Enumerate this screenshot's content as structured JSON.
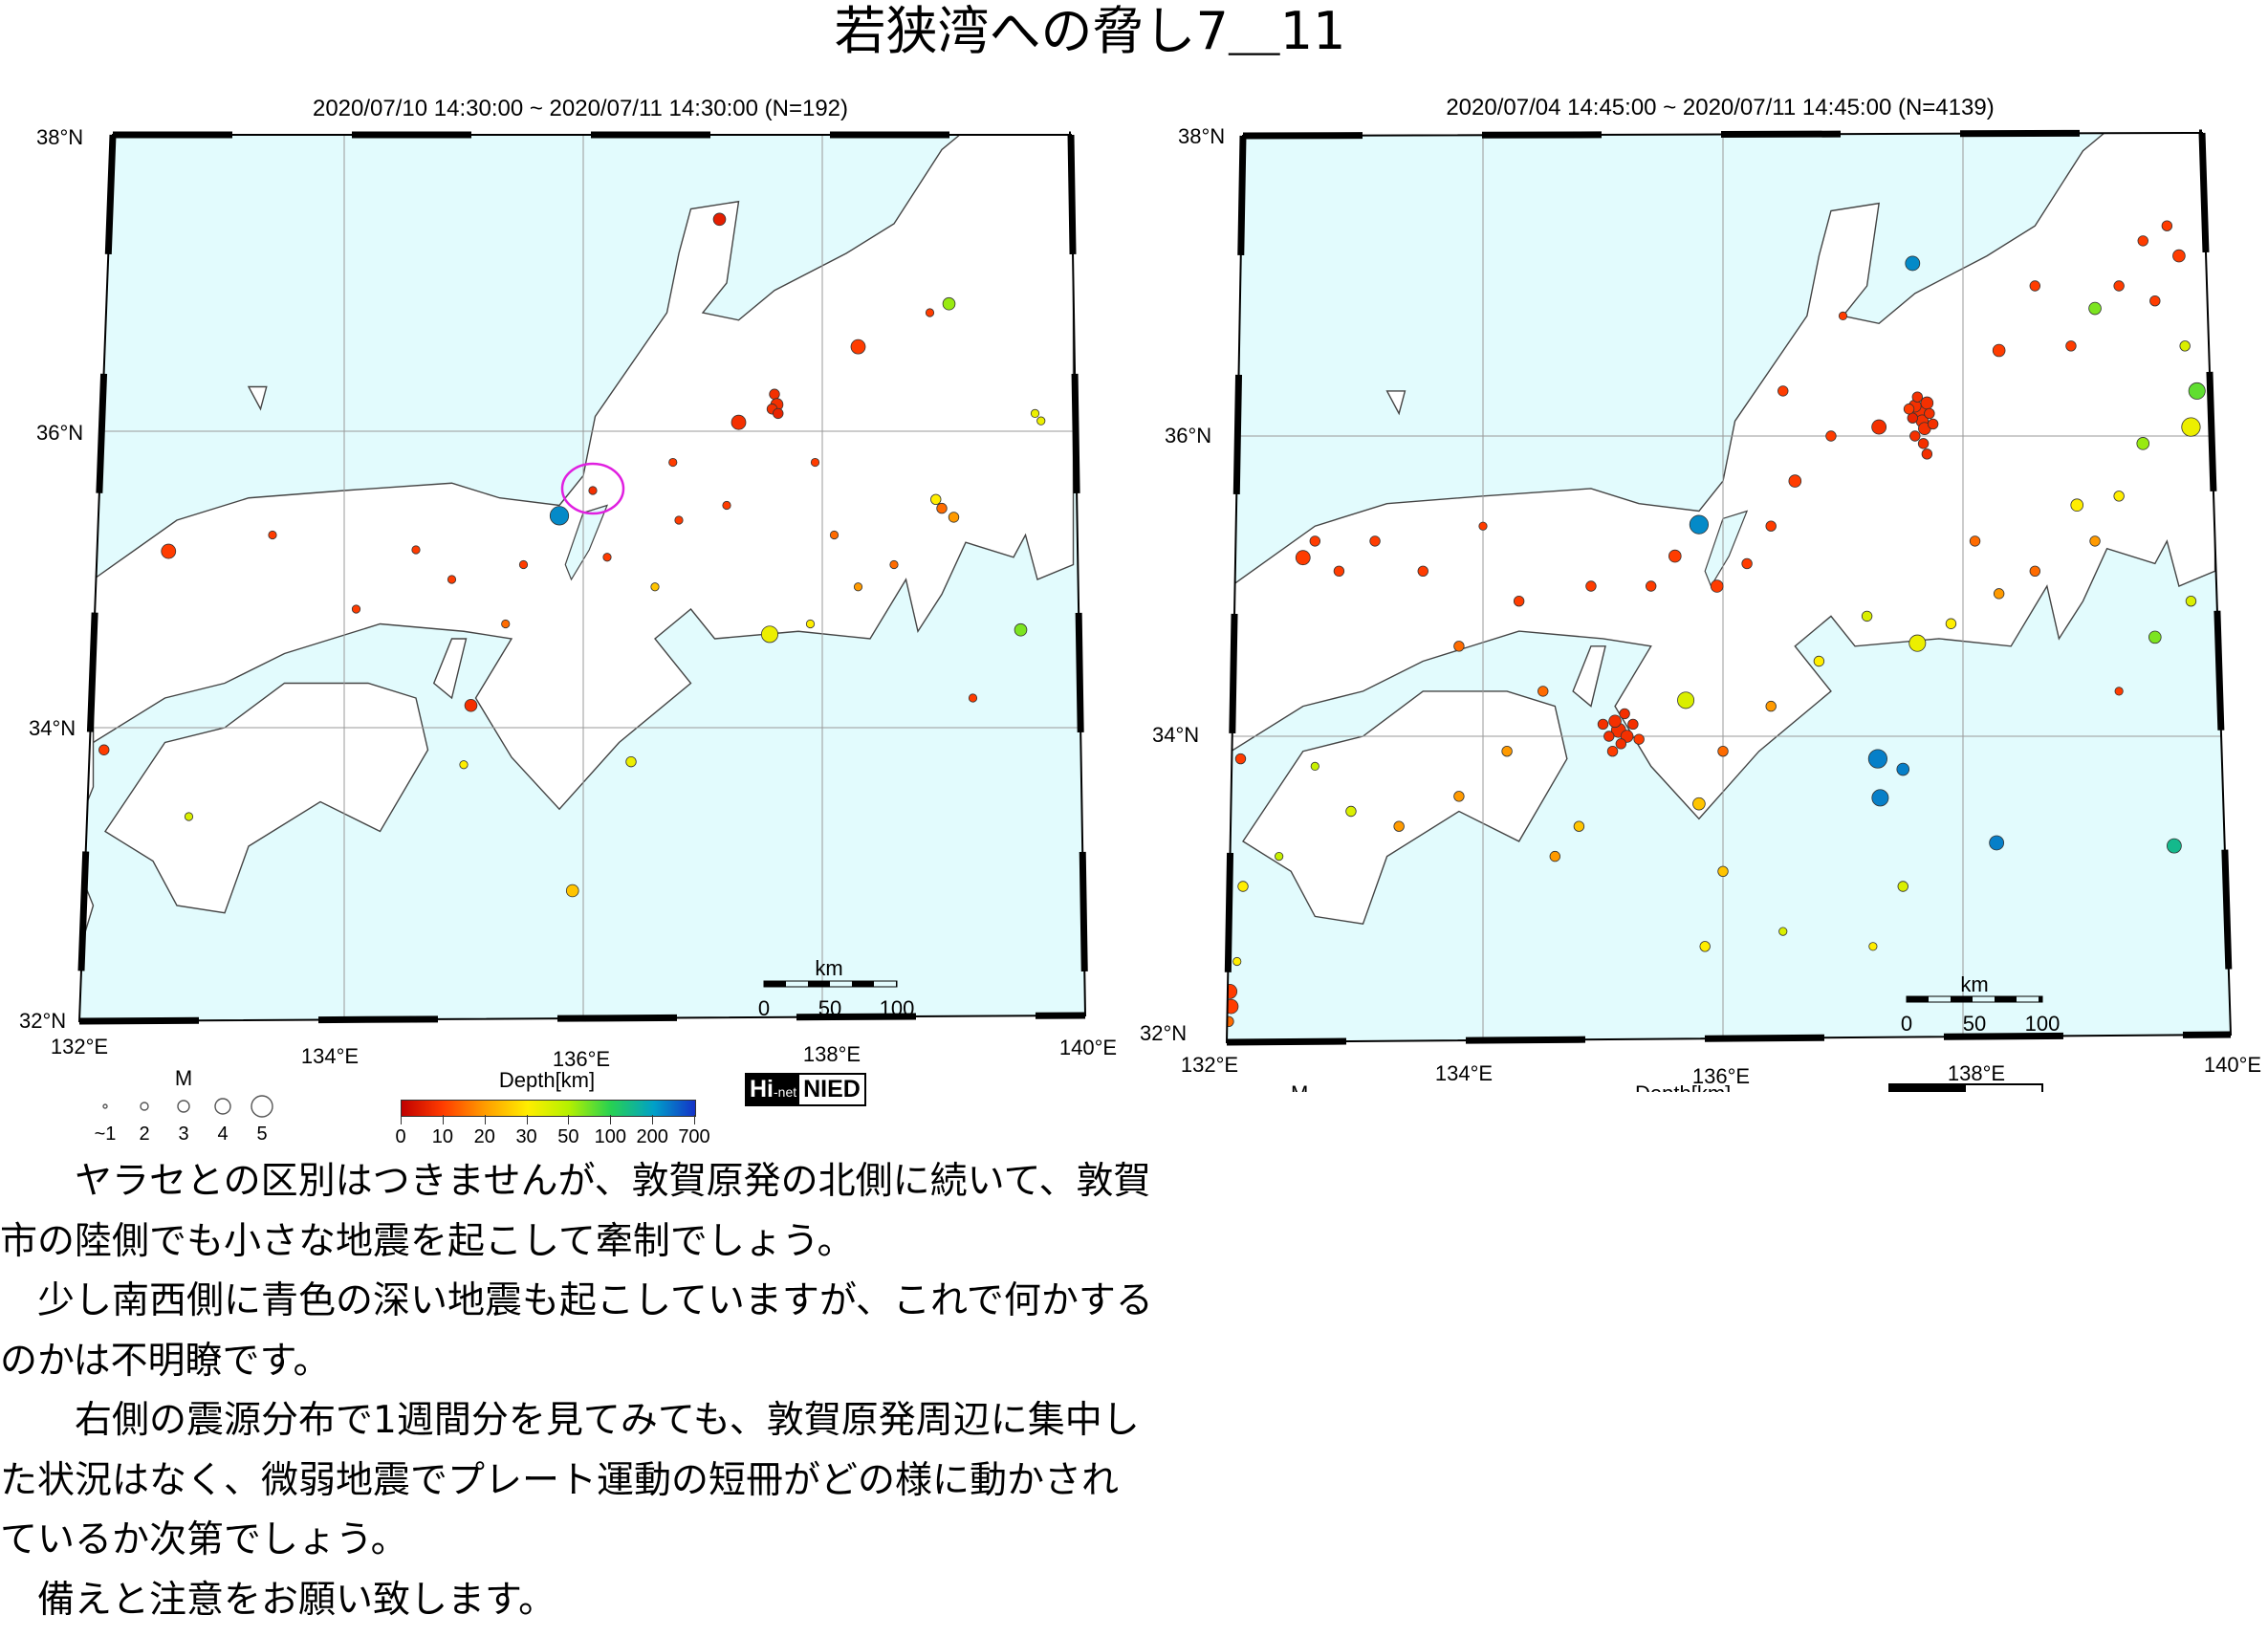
{
  "title": "若狭湾への脅し7＿11",
  "colors": {
    "sea": "#e2fbfd",
    "land": "#ffffff",
    "highlight_circle": "#e020e0"
  },
  "depth_color_stops": [
    [
      0,
      "#c80000"
    ],
    [
      10,
      "#ff3c00"
    ],
    [
      20,
      "#ff9a00"
    ],
    [
      30,
      "#ffee00"
    ],
    [
      50,
      "#b4f000"
    ],
    [
      100,
      "#28d250"
    ],
    [
      200,
      "#00a0c8"
    ],
    [
      700,
      "#1432c8"
    ]
  ],
  "maps": [
    {
      "header": "2020/07/10 14:30:00 ~ 2020/07/11 14:30:00 (N=192)",
      "lat_labels": [
        "38°N",
        "36°N",
        "34°N",
        "32°N"
      ],
      "lon_labels": [
        "132°E",
        "134°E",
        "136°E",
        "138°E",
        "140°E"
      ],
      "scale": {
        "unit": "km",
        "labels": [
          "0",
          "50",
          "100"
        ]
      },
      "highlight": {
        "lon": 136.08,
        "lat": 35.6,
        "note": "Tsuruga area"
      },
      "events": [
        [
          137.14,
          37.43,
          5,
          2
        ],
        [
          139.06,
          36.86,
          60,
          2
        ],
        [
          138.3,
          36.57,
          10,
          2.5
        ],
        [
          137.6,
          36.25,
          8,
          1.5
        ],
        [
          137.62,
          36.18,
          8,
          2
        ],
        [
          137.58,
          36.15,
          8,
          1.5
        ],
        [
          137.63,
          36.12,
          6,
          1.5
        ],
        [
          137.3,
          36.06,
          8,
          2.5
        ],
        [
          136.08,
          35.6,
          8,
          1
        ],
        [
          135.8,
          35.43,
          300,
          3.5
        ],
        [
          132.53,
          35.19,
          10,
          2.5
        ],
        [
          137.56,
          34.63,
          35,
          3
        ],
        [
          139.66,
          34.66,
          70,
          2
        ],
        [
          138.95,
          35.54,
          30,
          1.5
        ],
        [
          139.0,
          35.48,
          15,
          1.5
        ],
        [
          139.1,
          35.42,
          20,
          1.5
        ],
        [
          135.91,
          32.9,
          25,
          2
        ],
        [
          135.06,
          34.15,
          8,
          2
        ],
        [
          131.99,
          33.85,
          10,
          1.5
        ],
        [
          136.4,
          33.77,
          35,
          1.5
        ],
        [
          135.0,
          33.75,
          30,
          1
        ],
        [
          139.26,
          34.2,
          10,
          1
        ],
        [
          139.83,
          36.07,
          35,
          1
        ],
        [
          139.78,
          36.12,
          35,
          1
        ],
        [
          137.94,
          35.79,
          10,
          1
        ],
        [
          136.75,
          35.79,
          10,
          1
        ],
        [
          136.2,
          35.15,
          10,
          1
        ],
        [
          135.5,
          35.1,
          10,
          1
        ],
        [
          134.9,
          35.0,
          10,
          1
        ],
        [
          134.6,
          35.2,
          10,
          1
        ],
        [
          133.4,
          35.3,
          10,
          1
        ],
        [
          136.8,
          35.4,
          10,
          1
        ],
        [
          137.2,
          35.5,
          10,
          1
        ],
        [
          138.1,
          35.3,
          15,
          1
        ],
        [
          138.3,
          34.95,
          20,
          1
        ],
        [
          138.6,
          35.1,
          15,
          1
        ],
        [
          138.9,
          36.8,
          10,
          1
        ],
        [
          136.6,
          34.95,
          25,
          1
        ],
        [
          137.9,
          34.7,
          30,
          1
        ],
        [
          132.7,
          33.4,
          40,
          1
        ],
        [
          134.1,
          34.8,
          10,
          1
        ],
        [
          135.35,
          34.7,
          15,
          1
        ]
      ]
    },
    {
      "header": "2020/07/04 14:45:00 ~ 2020/07/11 14:45:00 (N=4139)",
      "lat_labels": [
        "38°N",
        "36°N",
        "34°N",
        "32°N"
      ],
      "lon_labels": [
        "132°E",
        "134°E",
        "136°E",
        "138°E",
        "140°E"
      ],
      "scale": {
        "unit": "km",
        "labels": [
          "0",
          "50",
          "100"
        ]
      },
      "events": [
        [
          137.64,
          36.16,
          8,
          2.5
        ],
        [
          137.6,
          36.2,
          8,
          2
        ],
        [
          137.7,
          36.22,
          8,
          2
        ],
        [
          137.66,
          36.1,
          8,
          2
        ],
        [
          137.58,
          36.12,
          6,
          1.5
        ],
        [
          137.72,
          36.15,
          8,
          1.5
        ],
        [
          137.62,
          36.26,
          8,
          1.5
        ],
        [
          137.68,
          36.05,
          8,
          2
        ],
        [
          137.55,
          36.18,
          10,
          1.5
        ],
        [
          137.75,
          36.08,
          8,
          1.5
        ],
        [
          137.6,
          36.0,
          8,
          1.5
        ],
        [
          137.67,
          35.95,
          8,
          1.5
        ],
        [
          137.7,
          35.88,
          8,
          1.5
        ],
        [
          137.3,
          36.06,
          8,
          2.5
        ],
        [
          135.13,
          34.04,
          8,
          2.5
        ],
        [
          135.1,
          34.1,
          8,
          2
        ],
        [
          135.2,
          34.0,
          8,
          2
        ],
        [
          135.05,
          34.0,
          8,
          1.5
        ],
        [
          135.15,
          33.95,
          8,
          1.5
        ],
        [
          135.25,
          34.08,
          8,
          1.5
        ],
        [
          135.0,
          34.08,
          8,
          1.5
        ],
        [
          135.18,
          34.15,
          8,
          1.5
        ],
        [
          135.3,
          33.98,
          10,
          1.5
        ],
        [
          135.08,
          33.9,
          10,
          1.5
        ],
        [
          137.29,
          33.85,
          350,
          3.5
        ],
        [
          137.31,
          33.59,
          350,
          3
        ],
        [
          137.5,
          33.78,
          350,
          2
        ],
        [
          138.28,
          33.29,
          350,
          2.5
        ],
        [
          137.58,
          37.15,
          300,
          2.5
        ],
        [
          135.8,
          35.41,
          300,
          3.5
        ],
        [
          139.76,
          33.27,
          150,
          2.5
        ],
        [
          139.95,
          36.3,
          80,
          3
        ],
        [
          139.9,
          36.06,
          35,
          3.5
        ],
        [
          137.62,
          34.62,
          35,
          3
        ],
        [
          135.69,
          34.24,
          40,
          3
        ],
        [
          131.89,
          32.3,
          10,
          2.5
        ],
        [
          131.9,
          32.2,
          10,
          2.5
        ],
        [
          131.88,
          32.1,
          15,
          1.5
        ],
        [
          131.95,
          32.5,
          30,
          1
        ],
        [
          132.0,
          33.0,
          30,
          1.5
        ],
        [
          131.98,
          33.85,
          10,
          1.5
        ],
        [
          132.5,
          35.19,
          10,
          2.5
        ],
        [
          132.6,
          35.3,
          10,
          1.5
        ],
        [
          132.8,
          35.1,
          10,
          1.5
        ],
        [
          133.1,
          35.3,
          10,
          1.5
        ],
        [
          133.5,
          35.1,
          10,
          1.5
        ],
        [
          134.0,
          35.4,
          10,
          1
        ],
        [
          134.3,
          34.9,
          10,
          1.5
        ],
        [
          133.8,
          34.6,
          15,
          1.5
        ],
        [
          134.9,
          35.0,
          10,
          1.5
        ],
        [
          135.4,
          35.0,
          10,
          1.5
        ],
        [
          135.6,
          35.2,
          10,
          2
        ],
        [
          135.95,
          35.0,
          10,
          2
        ],
        [
          136.2,
          35.15,
          10,
          1.5
        ],
        [
          136.4,
          35.4,
          10,
          1.5
        ],
        [
          136.6,
          35.7,
          10,
          2
        ],
        [
          136.9,
          36.0,
          10,
          1.5
        ],
        [
          136.5,
          36.3,
          10,
          1.5
        ],
        [
          137.0,
          36.8,
          10,
          1
        ],
        [
          138.3,
          36.57,
          10,
          2
        ],
        [
          138.6,
          37.0,
          10,
          1.5
        ],
        [
          138.9,
          36.6,
          10,
          1.5
        ],
        [
          139.1,
          36.85,
          70,
          2
        ],
        [
          139.3,
          37.0,
          10,
          1.5
        ],
        [
          139.5,
          37.3,
          10,
          1.5
        ],
        [
          139.7,
          37.4,
          10,
          1.5
        ],
        [
          139.8,
          37.2,
          10,
          2
        ],
        [
          139.6,
          36.9,
          10,
          1.5
        ],
        [
          139.85,
          36.6,
          40,
          1.5
        ],
        [
          139.5,
          35.95,
          60,
          2
        ],
        [
          139.3,
          35.6,
          30,
          1.5
        ],
        [
          138.95,
          35.54,
          30,
          2
        ],
        [
          139.1,
          35.3,
          20,
          1.5
        ],
        [
          138.6,
          35.1,
          15,
          1.5
        ],
        [
          138.1,
          35.3,
          15,
          1.5
        ],
        [
          138.3,
          34.95,
          20,
          1.5
        ],
        [
          137.9,
          34.75,
          30,
          1.5
        ],
        [
          137.2,
          34.8,
          40,
          1.5
        ],
        [
          136.8,
          34.5,
          30,
          1.5
        ],
        [
          136.4,
          34.2,
          20,
          1.5
        ],
        [
          136.0,
          33.9,
          15,
          1.5
        ],
        [
          135.8,
          33.55,
          25,
          2
        ],
        [
          136.0,
          33.1,
          25,
          1.5
        ],
        [
          135.85,
          32.6,
          30,
          1.5
        ],
        [
          136.5,
          32.7,
          40,
          1
        ],
        [
          137.5,
          33.0,
          40,
          1.5
        ],
        [
          137.25,
          32.6,
          30,
          1
        ],
        [
          139.3,
          34.3,
          10,
          1
        ],
        [
          139.6,
          34.66,
          70,
          2
        ],
        [
          139.9,
          34.9,
          40,
          1.5
        ],
        [
          134.5,
          34.3,
          15,
          1.5
        ],
        [
          134.2,
          33.9,
          20,
          1.5
        ],
        [
          133.8,
          33.6,
          20,
          1.5
        ],
        [
          133.3,
          33.4,
          20,
          1.5
        ],
        [
          132.9,
          33.5,
          40,
          1.5
        ],
        [
          132.6,
          33.8,
          45,
          1
        ],
        [
          132.3,
          33.2,
          45,
          1
        ],
        [
          134.8,
          33.4,
          25,
          1.5
        ],
        [
          134.6,
          33.2,
          20,
          1.5
        ]
      ]
    }
  ],
  "legend": {
    "magnitude_title": "M",
    "magnitude_labels": [
      "~1",
      "2",
      "3",
      "4",
      "5"
    ],
    "depth_title": "Depth[km]",
    "depth_labels": [
      "0",
      "10",
      "20",
      "30",
      "50",
      "100",
      "200",
      "700"
    ],
    "logo_left": "Hi",
    "logo_small": "-net",
    "logo_right": "NIED"
  },
  "body_lines": [
    "　　ヤラセとの区別はつきませんが、敦賀原発の北側に続いて、敦賀",
    "市の陸側でも小さな地震を起こして牽制でしょう。",
    "　少し南西側に青色の深い地震も起こしていますが、これで何かする",
    "のかは不明瞭です。",
    "　　右側の震源分布で1週間分を見てみても、敦賀原発周辺に集中し",
    "た状況はなく、微弱地震でプレート運動の短冊がどの様に動かされ",
    "ているか次第でしょう。",
    "　備えと注意をお願い致します。"
  ]
}
